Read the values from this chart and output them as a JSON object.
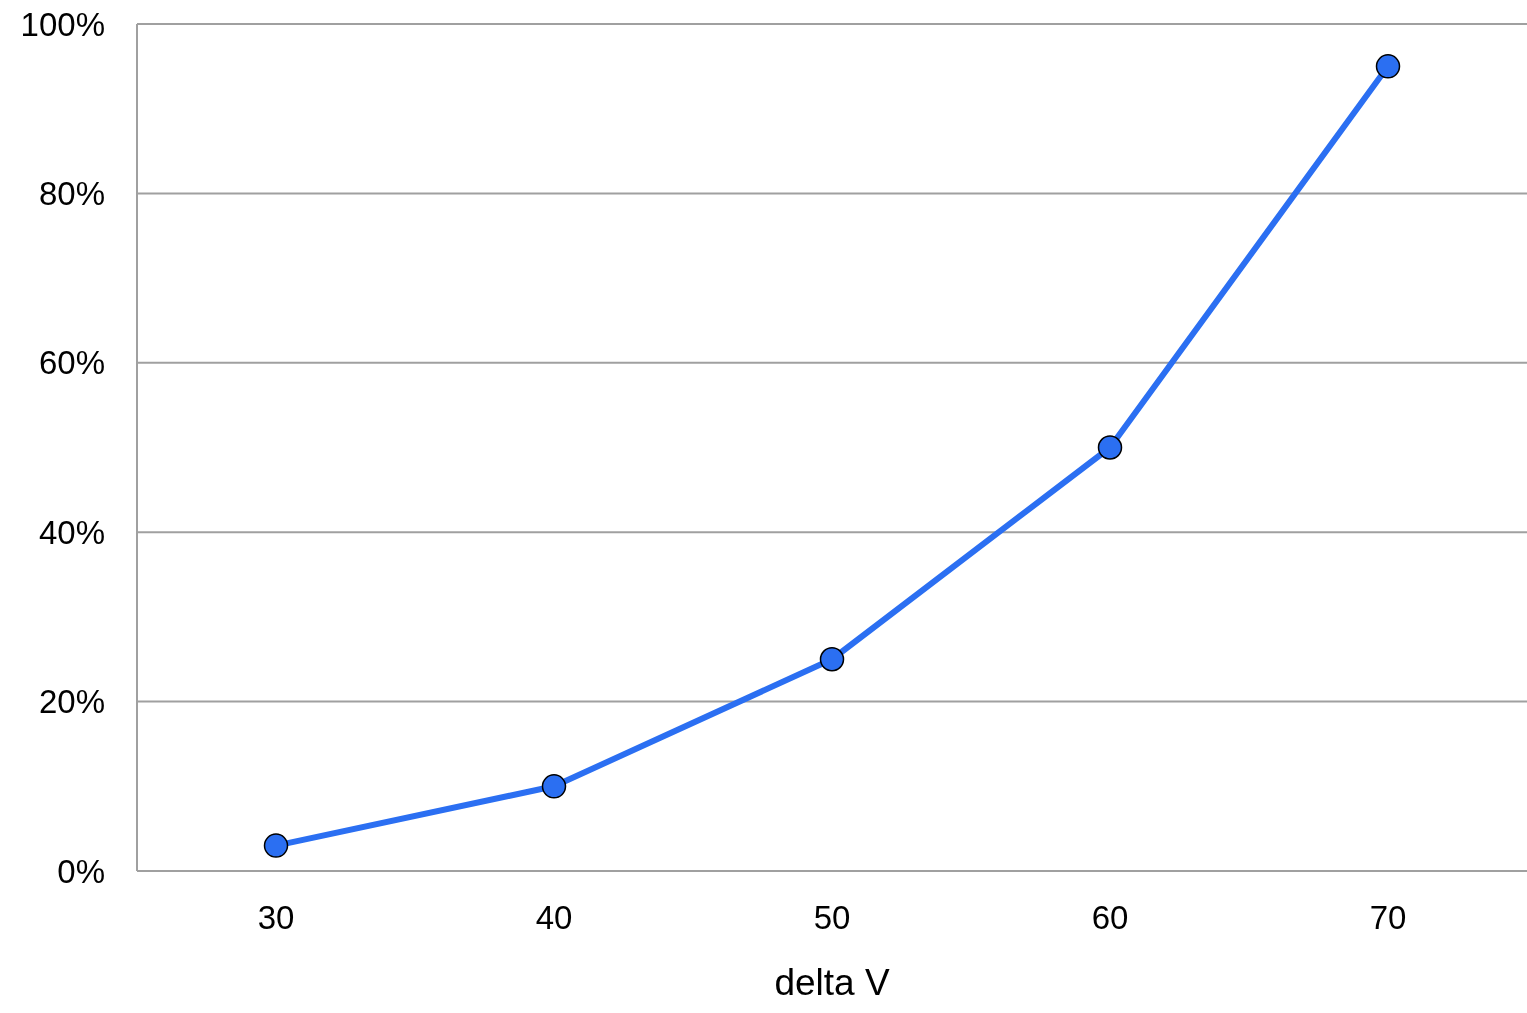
{
  "chart_data": {
    "type": "line",
    "xlabel": "delta V",
    "categories": [
      "30",
      "40",
      "50",
      "60",
      "70"
    ],
    "series": [
      {
        "color": "#2b6ff2",
        "values": [
          3,
          10,
          25,
          50,
          95
        ]
      }
    ],
    "ylim": [
      0,
      100
    ],
    "yticks": [
      {
        "value": 0,
        "label": "0%"
      },
      {
        "value": 20,
        "label": "20%"
      },
      {
        "value": 40,
        "label": "40%"
      },
      {
        "value": 60,
        "label": "60%"
      },
      {
        "value": 80,
        "label": "80%"
      },
      {
        "value": 100,
        "label": "100%"
      }
    ],
    "grid": "y",
    "marker": "circle",
    "line_style": "solid"
  }
}
